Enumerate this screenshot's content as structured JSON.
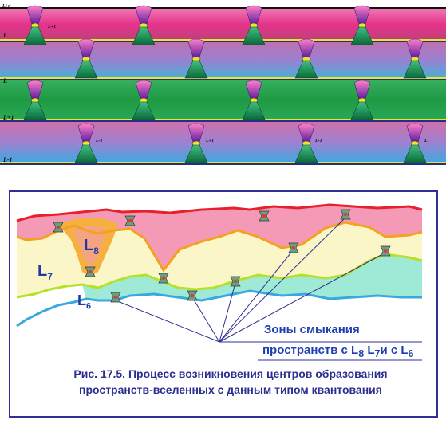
{
  "top_figure": {
    "level_labels": [
      "L+n",
      "L",
      "L",
      "L+1",
      "L-1",
      "L+1",
      "L-1",
      "L+1",
      "L-1",
      "L"
    ],
    "colors": {
      "magenta": "#e6338c",
      "green": "#22a04a",
      "blue": "#3aa0e0",
      "violet": "#a673c8",
      "yellow": "#e8e82a"
    }
  },
  "bottom_figure": {
    "zone_labels": {
      "L8": "L",
      "L8_sub": "8",
      "L7": "L",
      "L7_sub": "7",
      "L6": "L",
      "L6_sub": "6"
    },
    "annotation_line1": "Зоны смыкания",
    "annotation_line2_prefix": "пространств с ",
    "annotation_L8": "L",
    "annotation_L8_sub": "8",
    "annotation_L7": "L",
    "annotation_L7_sub": "7",
    "annotation_and": "и с ",
    "annotation_L6": "L",
    "annotation_L6_sub": "6",
    "colors": {
      "red": "#e8202a",
      "pink": "#f49ab6",
      "orange": "#f4a020",
      "cream": "#fbf6c8",
      "lime": "#b6e02a",
      "mint": "#9fead6",
      "cyan": "#3aa8e0",
      "line": "#2e3192"
    }
  },
  "caption": {
    "line1": "Рис. 17.5. Процесс возникновения центров образования",
    "line2": "пространств-вселенных с данным типом квантования"
  }
}
